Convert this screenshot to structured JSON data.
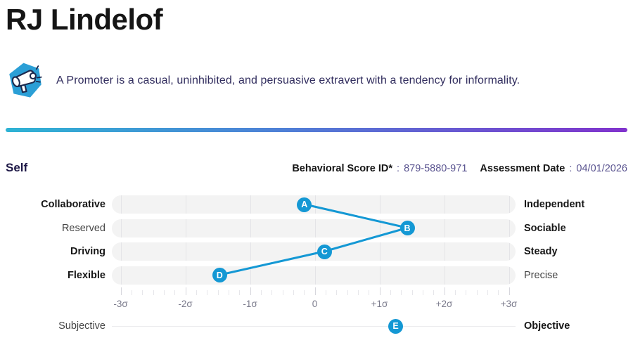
{
  "header": {
    "title": "RJ Lindelof"
  },
  "persona": {
    "icon": "megaphone-icon",
    "description": "A Promoter is a casual, uninhibited, and persuasive extravert with a tendency for informality."
  },
  "meta": {
    "section_label": "Self",
    "score_id_label": "Behavioral Score ID*",
    "separator": ":",
    "score_id_value": "879-5880-971",
    "assessment_date_label": "Assessment Date",
    "assessment_date_value": "04/01/2026"
  },
  "colors": {
    "accent_blue": "#1498d4",
    "hexagon_blue": "#2b9fd6",
    "gradient_start": "#2eb3d4",
    "gradient_end": "#8133cd",
    "bar_background": "#f3f3f3"
  },
  "chart_data": {
    "type": "scatter",
    "subtype": "connected-dot-plot",
    "axis": {
      "tick_labels": [
        "-3σ",
        "-2σ",
        "-1σ",
        "0",
        "+1σ",
        "+2σ",
        "+3σ"
      ],
      "range": [
        -3,
        3
      ],
      "minor_ticks_per_sigma": 6
    },
    "rows": [
      {
        "left": "Collaborative",
        "left_bold": true,
        "right": "Independent",
        "right_bold": true,
        "marker": "A",
        "sigma": -0.16
      },
      {
        "left": "Reserved",
        "left_bold": false,
        "right": "Sociable",
        "right_bold": true,
        "marker": "B",
        "sigma": 1.43
      },
      {
        "left": "Driving",
        "left_bold": true,
        "right": "Steady",
        "right_bold": true,
        "marker": "C",
        "sigma": 0.15
      },
      {
        "left": "Flexible",
        "left_bold": true,
        "right": "Precise",
        "right_bold": false,
        "marker": "D",
        "sigma": -1.47
      }
    ],
    "footer_row": {
      "left": "Subjective",
      "left_bold": false,
      "right": "Objective",
      "right_bold": true,
      "marker": "E",
      "sigma": 1.25
    },
    "connected": true,
    "legend": "off",
    "grid": "off"
  }
}
